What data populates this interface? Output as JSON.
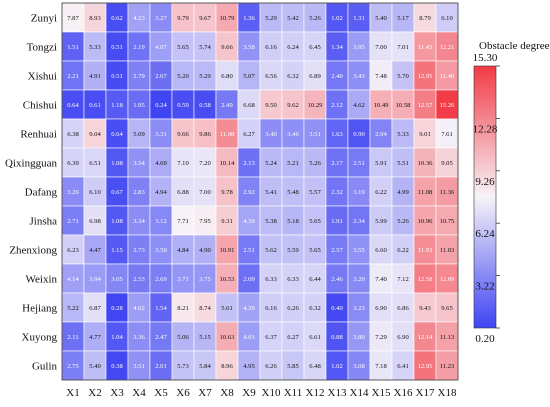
{
  "chart_data": {
    "type": "heatmap",
    "title": "",
    "xlabel": "",
    "ylabel": "",
    "columns": [
      "X1",
      "X2",
      "X3",
      "X4",
      "X5",
      "X6",
      "X7",
      "X8",
      "X9",
      "X10",
      "X11",
      "X12",
      "X13",
      "X14",
      "X15",
      "X16",
      "X17",
      "X18"
    ],
    "rows": [
      "Zunyi",
      "Tongzi",
      "Xishui",
      "Chishui",
      "Renhuai",
      "Qixingguan",
      "Dafang",
      "Jinsha",
      "Zhenxiong",
      "Weixin",
      "Hejiang",
      "Xuyong",
      "Gulin"
    ],
    "values": [
      [
        7.87,
        8.93,
        0.62,
        4.23,
        3.27,
        9.79,
        9.67,
        10.79,
        1.36,
        5.29,
        5.42,
        5.26,
        1.02,
        1.31,
        5.4,
        5.17,
        8.79,
        6.1
      ],
      [
        1.51,
        5.33,
        0.51,
        2.19,
        4.07,
        5.65,
        5.74,
        9.66,
        3.58,
        6.16,
        6.24,
        6.45,
        1.34,
        3.95,
        7.0,
        7.01,
        11.43,
        12.21
      ],
      [
        2.21,
        4.91,
        0.51,
        2.79,
        2.07,
        5.2,
        5.29,
        6.8,
        5.07,
        6.56,
        6.32,
        6.89,
        2.4,
        3.43,
        7.48,
        5.7,
        12.95,
        11.4
      ],
      [
        0.64,
        0.61,
        1.18,
        1.95,
        0.24,
        0.59,
        0.58,
        2.49,
        6.68,
        9.5,
        9.62,
        10.29,
        2.12,
        4.62,
        10.49,
        10.58,
        12.57,
        15.26
      ],
      [
        6.38,
        9.04,
        0.64,
        5.09,
        3.31,
        9.66,
        9.86,
        11.98,
        6.27,
        3.4,
        3.46,
        3.51,
        1.63,
        0.9,
        2.94,
        5.33,
        9.01,
        7.61
      ],
      [
        6.39,
        6.51,
        1.08,
        3.54,
        4.69,
        7.1,
        7.2,
        10.14,
        2.13,
        5.24,
        5.21,
        5.26,
        2.17,
        2.51,
        5.91,
        5.51,
        10.36,
        9.05
      ],
      [
        3.26,
        6.1,
        0.67,
        2.83,
        4.94,
        6.88,
        7.0,
        9.78,
        2.92,
        5.41,
        5.48,
        5.57,
        2.32,
        3.19,
        6.22,
        4.99,
        11.08,
        11.36
      ],
      [
        2.71,
        6.98,
        1.08,
        3.34,
        3.12,
        7.71,
        7.95,
        9.31,
        4.39,
        5.38,
        5.18,
        5.65,
        1.91,
        2.34,
        5.99,
        5.26,
        10.96,
        10.75
      ],
      [
        6.23,
        4.47,
        1.15,
        2.73,
        3.5,
        4.84,
        4.9,
        10.91,
        2.51,
        5.62,
        5.59,
        5.65,
        2.57,
        3.55,
        6.6,
        6.22,
        11.93,
        11.03
      ],
      [
        4.14,
        3.94,
        3.05,
        2.53,
        2.69,
        3.71,
        3.75,
        10.53,
        2.09,
        6.33,
        6.33,
        6.44,
        2.46,
        3.2,
        7.4,
        7.12,
        12.58,
        12.09
      ],
      [
        5.22,
        6.87,
        0.28,
        4.02,
        1.54,
        8.21,
        8.74,
        5.61,
        4.29,
        6.16,
        6.26,
        6.32,
        0.4,
        3.23,
        6.9,
        6.86,
        9.43,
        9.65
      ],
      [
        2.11,
        4.77,
        1.04,
        3.36,
        2.47,
        5.06,
        5.15,
        10.63,
        4.03,
        6.37,
        6.27,
        6.61,
        0.88,
        3.8,
        7.29,
        6.9,
        12.14,
        11.13
      ],
      [
        2.75,
        5.4,
        0.38,
        3.51,
        2.01,
        5.73,
        5.84,
        8.96,
        4.95,
        6.26,
        5.85,
        6.48,
        1.02,
        3.08,
        7.18,
        6.41,
        12.95,
        11.23
      ]
    ],
    "colorbar": {
      "title": "Obstacle degree(%)",
      "min": 0.2,
      "max": 15.3,
      "ticks": [
        "15.30",
        "12.28",
        "9.26",
        "6.24",
        "3.22",
        "0.20"
      ],
      "colors": {
        "low": "#3f44f2",
        "mid": "#f7f3f8",
        "high": "#f23b46"
      }
    },
    "grid": true
  }
}
